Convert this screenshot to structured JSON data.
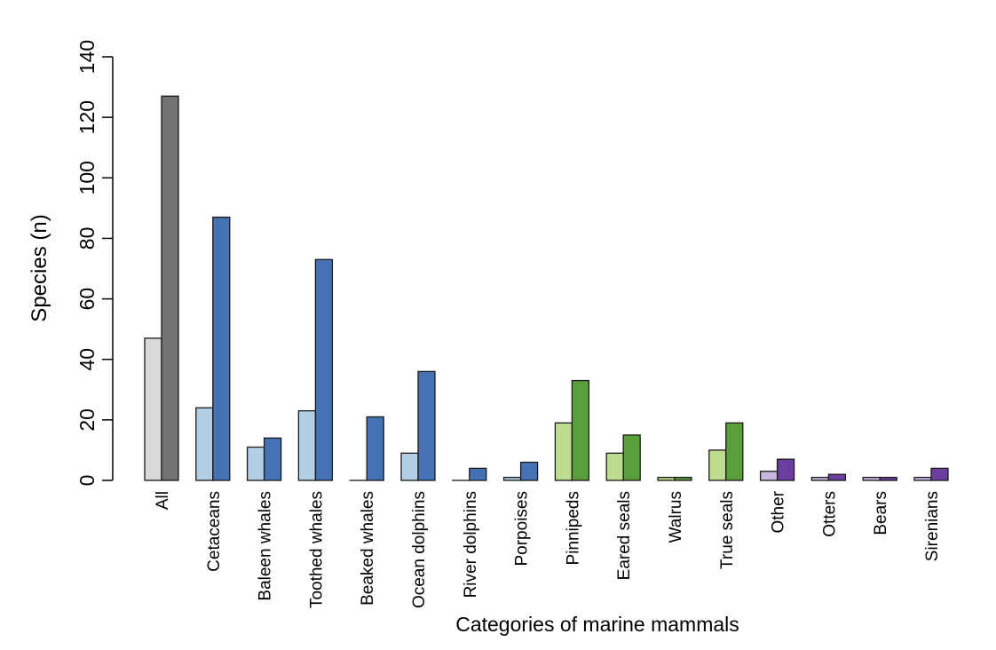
{
  "chart_data": {
    "type": "bar",
    "xlabel": "Categories of marine mammals",
    "ylabel": "Species (n)",
    "ylim": [
      0,
      140
    ],
    "yticks": [
      0,
      20,
      40,
      60,
      80,
      100,
      120,
      140
    ],
    "grid": false,
    "legend": "none",
    "categories": [
      "All",
      "Cetaceans",
      "Baleen whales",
      "Toothed whales",
      "Beaked whales",
      "Ocean dolphins",
      "River dolphins",
      "Porpoises",
      "Pinnipeds",
      "Eared seals",
      "Walrus",
      "True seals",
      "Other",
      "Otters",
      "Bears",
      "Sirenians"
    ],
    "series": [
      {
        "values": [
          47,
          24,
          11,
          23,
          0,
          9,
          0,
          1,
          19,
          9,
          1,
          10,
          3,
          1,
          1,
          1
        ]
      },
      {
        "values": [
          127,
          87,
          14,
          73,
          21,
          36,
          4,
          6,
          33,
          15,
          1,
          19,
          7,
          2,
          1,
          4
        ]
      }
    ],
    "colors": {
      "light": [
        "#d9d9d9",
        "#b3cfe5",
        "#b3cfe5",
        "#b3cfe5",
        "#b3cfe5",
        "#b3cfe5",
        "#b3cfe5",
        "#b3cfe5",
        "#bcdd8f",
        "#bcdd8f",
        "#bcdd8f",
        "#bcdd8f",
        "#c9b8dd",
        "#c9b8dd",
        "#c9b8dd",
        "#c9b8dd"
      ],
      "dark": [
        "#737373",
        "#4472b4",
        "#4472b4",
        "#4472b4",
        "#4472b4",
        "#4472b4",
        "#4472b4",
        "#4472b4",
        "#5b9e3c",
        "#5b9e3c",
        "#5b9e3c",
        "#5b9e3c",
        "#6a3fa0",
        "#6a3fa0",
        "#6a3fa0",
        "#6a3fa0"
      ]
    }
  }
}
